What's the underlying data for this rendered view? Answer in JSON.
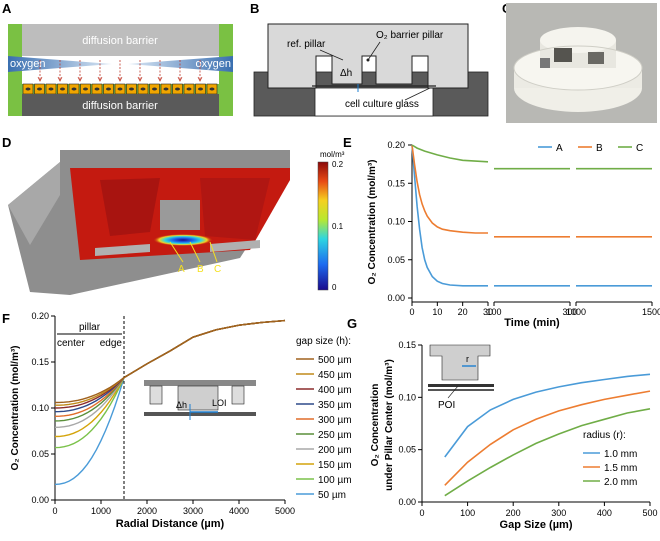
{
  "panel_letters": {
    "a": "A",
    "b": "B",
    "c": "C",
    "d": "D",
    "e": "E",
    "f": "F",
    "g": "G"
  },
  "panel_a": {
    "barrier_top": "diffusion barrier",
    "barrier_bottom": "diffusion barrier",
    "oxygen_left": "oxygen",
    "oxygen_right": "oxygen"
  },
  "panel_b": {
    "ref_pillar": "ref. pillar",
    "o2_pillar": "O₂ barrier pillar",
    "delta_h": "Δh",
    "glass": "cell culture glass"
  },
  "panel_c": {
    "photo": "3D printed device"
  },
  "panel_d": {
    "unit": "mol/m³",
    "scale_ticks": [
      "0.2",
      "0.1",
      "0"
    ],
    "points": [
      "A",
      "B",
      "C"
    ]
  },
  "colors": {
    "series_a": "#4a9bd8",
    "series_b": "#ed7d31",
    "series_c": "#70ad47",
    "barrier_gray": "#bdbdbd",
    "dark_gray": "#5a5a5a",
    "cell_orange": "#f0a500"
  },
  "chart_data": [
    {
      "id": "E",
      "type": "line",
      "title": "",
      "xlabel": "Time (min)",
      "ylabel": "O₂ Concentration (mol/m³)",
      "ylim": [
        0,
        0.2
      ],
      "y_ticks": [
        "0.00",
        "0.05",
        "0.10",
        "0.15",
        "0.20"
      ],
      "x_segments": [
        {
          "range": [
            0,
            30
          ],
          "ticks": [
            "0",
            "10",
            "20",
            "30"
          ]
        },
        {
          "range": [
            100,
            300
          ],
          "ticks": [
            "100",
            "300"
          ]
        },
        {
          "range": [
            1000,
            1500
          ],
          "ticks": [
            "1000",
            "1500"
          ]
        }
      ],
      "legend": "top-right",
      "series": [
        {
          "name": "A",
          "x": [
            0,
            1,
            2,
            3,
            4,
            5,
            6,
            8,
            10,
            12,
            15,
            20,
            25,
            30,
            100,
            200,
            300,
            1000,
            1250,
            1500
          ],
          "y": [
            0.2,
            0.16,
            0.12,
            0.09,
            0.066,
            0.05,
            0.04,
            0.028,
            0.022,
            0.019,
            0.017,
            0.016,
            0.016,
            0.016,
            0.016,
            0.016,
            0.016,
            0.016,
            0.016,
            0.016
          ]
        },
        {
          "name": "B",
          "x": [
            0,
            1,
            2,
            3,
            4,
            5,
            6,
            8,
            10,
            12,
            15,
            20,
            25,
            30,
            100,
            200,
            300,
            1000,
            1250,
            1500
          ],
          "y": [
            0.2,
            0.175,
            0.152,
            0.135,
            0.123,
            0.114,
            0.107,
            0.098,
            0.093,
            0.09,
            0.088,
            0.086,
            0.085,
            0.085,
            0.08,
            0.08,
            0.08,
            0.08,
            0.08,
            0.08
          ]
        },
        {
          "name": "C",
          "x": [
            0,
            2,
            5,
            10,
            15,
            20,
            25,
            30,
            100,
            200,
            300,
            1000,
            1250,
            1500
          ],
          "y": [
            0.2,
            0.196,
            0.192,
            0.187,
            0.183,
            0.18,
            0.179,
            0.178,
            0.169,
            0.169,
            0.169,
            0.169,
            0.169,
            0.169
          ]
        }
      ]
    },
    {
      "id": "F",
      "type": "line",
      "title": "",
      "xlabel": "Radial  Distance (µm)",
      "ylabel": "O₂ Concentration (mol/m³)",
      "xlim": [
        0,
        5000
      ],
      "ylim": [
        0,
        0.2
      ],
      "x_ticks": [
        "0",
        "1000",
        "2000",
        "3000",
        "4000",
        "5000"
      ],
      "y_ticks": [
        "0.00",
        "0.05",
        "0.10",
        "0.15",
        "0.20"
      ],
      "pillar_label": "pillar",
      "center_label": "center",
      "edge_label": "edge",
      "legend_title": "gap size (h):",
      "inset_labels": {
        "delta_h": "Δh",
        "loi": "LOI"
      },
      "series": [
        {
          "name": "500 µm",
          "color": "#a0621e",
          "y0": 0.106
        },
        {
          "name": "450 µm",
          "color": "#c08a1a",
          "y0": 0.103
        },
        {
          "name": "400 µm",
          "color": "#8b2c2c",
          "y0": 0.1
        },
        {
          "name": "350 µm",
          "color": "#2e4a8a",
          "y0": 0.096
        },
        {
          "name": "300 µm",
          "color": "#e06d2a",
          "y0": 0.091
        },
        {
          "name": "250 µm",
          "color": "#5a8f3a",
          "y0": 0.086
        },
        {
          "name": "200 µm",
          "color": "#a8a8a8",
          "y0": 0.079
        },
        {
          "name": "150 µm",
          "color": "#d4a40b",
          "y0": 0.069
        },
        {
          "name": "100 µm",
          "color": "#7bc24a",
          "y0": 0.057
        },
        {
          "name": "50 µm",
          "color": "#4a9bd8",
          "y0": 0.017
        }
      ],
      "shared_tail": {
        "x": [
          1500,
          2000,
          2500,
          3000,
          3500,
          4000,
          4500,
          5000
        ],
        "y": [
          0.133,
          0.148,
          0.162,
          0.177,
          0.185,
          0.19,
          0.193,
          0.195
        ]
      }
    },
    {
      "id": "G",
      "type": "line",
      "title": "",
      "xlabel": "Gap Size (µm)",
      "ylabel": "O₂ Concentration under Pillar Center (mol/m³)",
      "ylabel_line1": "O₂ Concentration",
      "ylabel_line2": "under Pillar Center (mol/m³)",
      "xlim": [
        0,
        500
      ],
      "ylim": [
        0,
        0.15
      ],
      "x_ticks": [
        "0",
        "100",
        "200",
        "300",
        "400",
        "500"
      ],
      "y_ticks": [
        "0.00",
        "0.05",
        "0.10",
        "0.15"
      ],
      "legend_title": "radius (r):",
      "inset_labels": {
        "r": "r",
        "poi": "POI"
      },
      "series": [
        {
          "name": "1.0 mm",
          "color": "#4a9bd8",
          "x": [
            50,
            100,
            150,
            200,
            250,
            300,
            350,
            400,
            450,
            500
          ],
          "y": [
            0.043,
            0.072,
            0.088,
            0.098,
            0.105,
            0.11,
            0.114,
            0.117,
            0.12,
            0.122
          ]
        },
        {
          "name": "1.5 mm",
          "color": "#ed7d31",
          "x": [
            50,
            100,
            150,
            200,
            250,
            300,
            350,
            400,
            450,
            500
          ],
          "y": [
            0.016,
            0.038,
            0.055,
            0.069,
            0.079,
            0.087,
            0.093,
            0.098,
            0.102,
            0.106
          ]
        },
        {
          "name": "2.0 mm",
          "color": "#70ad47",
          "x": [
            50,
            100,
            150,
            200,
            250,
            300,
            350,
            400,
            450,
            500
          ],
          "y": [
            0.006,
            0.02,
            0.033,
            0.045,
            0.056,
            0.065,
            0.073,
            0.079,
            0.085,
            0.089
          ]
        }
      ]
    }
  ]
}
